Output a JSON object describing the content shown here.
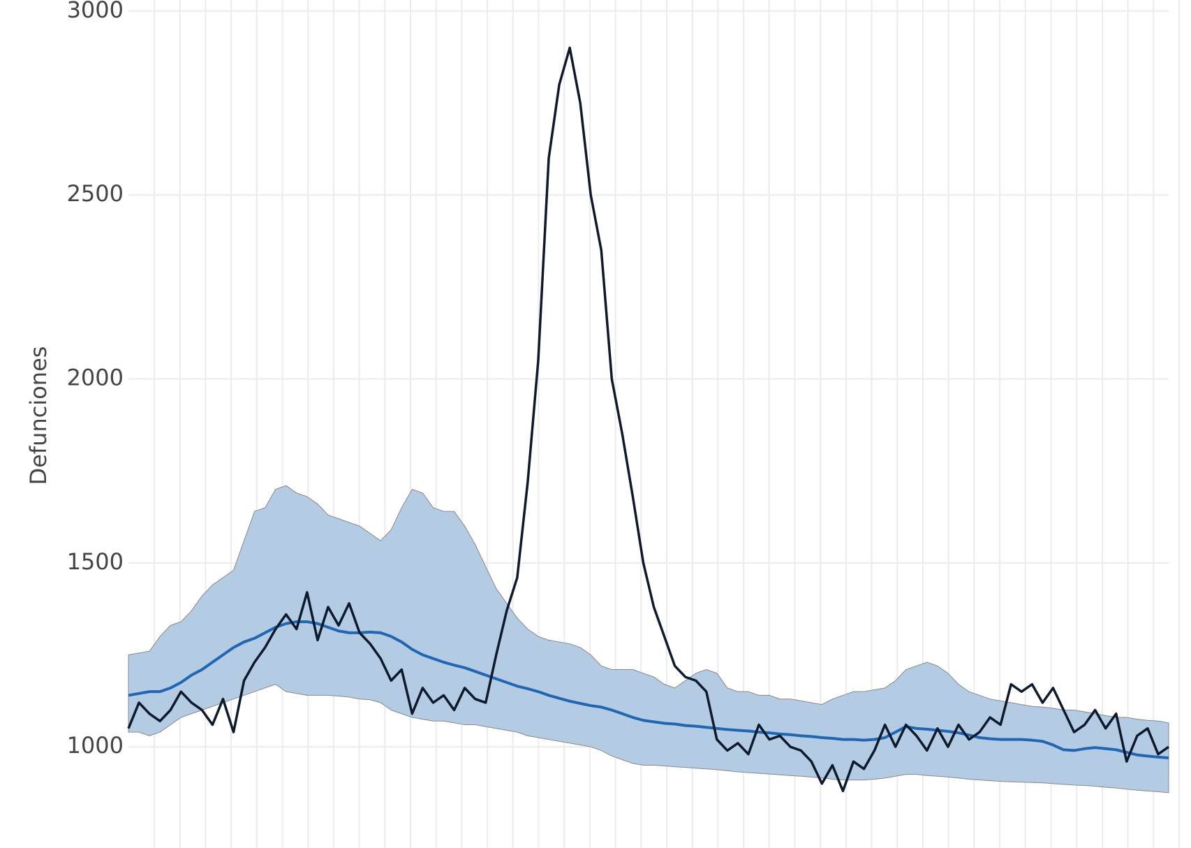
{
  "chart_data": {
    "type": "line",
    "y_label": "Defunciones",
    "ylim": [
      725,
      3030
    ],
    "yticks": [
      1000,
      1500,
      2000,
      2500,
      3000
    ],
    "grid": true,
    "categories": [
      null,
      null,
      null,
      null,
      null,
      null,
      null,
      null,
      null,
      null,
      null,
      null,
      null,
      null,
      null,
      null,
      null,
      null,
      null,
      null,
      null,
      null,
      null,
      null,
      null,
      null,
      null,
      null,
      null,
      null,
      null,
      null,
      null,
      null,
      null,
      null,
      null,
      null,
      null,
      null,
      null,
      null,
      null,
      null,
      null,
      null,
      null,
      null,
      null,
      null,
      null,
      null,
      null,
      null,
      null,
      null,
      null,
      null,
      null,
      null,
      null,
      null,
      null,
      null,
      null,
      null,
      null,
      null,
      null,
      null,
      null,
      null,
      null,
      null,
      null,
      null,
      null,
      null,
      null,
      null,
      null,
      null,
      null,
      null,
      null,
      null,
      null,
      null,
      null,
      null,
      null,
      null,
      null,
      null,
      null,
      null,
      null,
      null,
      null,
      null
    ],
    "series": [
      {
        "color": "#0c1a2c",
        "values": [
          1050,
          1120,
          1090,
          1070,
          1100,
          1150,
          1120,
          1100,
          1060,
          1130,
          1040,
          1180,
          1230,
          1270,
          1320,
          1360,
          1320,
          1420,
          1290,
          1380,
          1330,
          1390,
          1310,
          1280,
          1240,
          1180,
          1210,
          1090,
          1160,
          1120,
          1140,
          1100,
          1160,
          1130,
          1120,
          1250,
          1370,
          1460,
          1720,
          2050,
          2600,
          2800,
          2900,
          2750,
          2500,
          2350,
          2000,
          1850,
          1680,
          1500,
          1380,
          1300,
          1220,
          1190,
          1180,
          1150,
          1020,
          990,
          1010,
          980,
          1060,
          1020,
          1030,
          1000,
          990,
          960,
          900,
          950,
          880,
          960,
          940,
          990,
          1060,
          1000,
          1060,
          1030,
          990,
          1050,
          1000,
          1060,
          1020,
          1040,
          1080,
          1060,
          1170,
          1150,
          1170,
          1120,
          1160,
          1100,
          1040,
          1060,
          1100,
          1050,
          1090,
          960,
          1030,
          1050,
          980,
          1000
        ]
      },
      {
        "color": "#1f66b3",
        "band_color": "#b4cbe4",
        "values": [
          1140,
          1145,
          1150,
          1150,
          1160,
          1175,
          1195,
          1210,
          1230,
          1250,
          1270,
          1285,
          1295,
          1310,
          1325,
          1335,
          1340,
          1340,
          1335,
          1325,
          1315,
          1310,
          1310,
          1312,
          1310,
          1300,
          1285,
          1265,
          1250,
          1240,
          1230,
          1222,
          1215,
          1205,
          1195,
          1185,
          1175,
          1165,
          1158,
          1150,
          1140,
          1132,
          1124,
          1118,
          1112,
          1108,
          1100,
          1090,
          1080,
          1072,
          1068,
          1064,
          1062,
          1058,
          1056,
          1053,
          1050,
          1047,
          1045,
          1043,
          1040,
          1038,
          1035,
          1033,
          1030,
          1028,
          1025,
          1023,
          1020,
          1020,
          1018,
          1020,
          1025,
          1040,
          1055,
          1050,
          1048,
          1045,
          1042,
          1038,
          1032,
          1025,
          1022,
          1020,
          1020,
          1020,
          1018,
          1015,
          1005,
          992,
          990,
          995,
          998,
          995,
          992,
          985,
          978,
          975,
          972,
          970
        ],
        "upper": [
          1250,
          1255,
          1260,
          1300,
          1330,
          1340,
          1370,
          1410,
          1440,
          1460,
          1480,
          1560,
          1640,
          1650,
          1700,
          1710,
          1690,
          1680,
          1660,
          1630,
          1620,
          1610,
          1600,
          1580,
          1560,
          1590,
          1650,
          1700,
          1690,
          1650,
          1640,
          1640,
          1600,
          1550,
          1490,
          1430,
          1390,
          1350,
          1320,
          1300,
          1290,
          1285,
          1280,
          1270,
          1250,
          1220,
          1210,
          1210,
          1210,
          1200,
          1190,
          1170,
          1160,
          1180,
          1200,
          1210,
          1200,
          1160,
          1150,
          1150,
          1140,
          1140,
          1130,
          1130,
          1125,
          1120,
          1115,
          1130,
          1140,
          1150,
          1150,
          1155,
          1160,
          1180,
          1210,
          1220,
          1230,
          1220,
          1200,
          1170,
          1150,
          1140,
          1130,
          1125,
          1120,
          1115,
          1110,
          1108,
          1105,
          1100,
          1100,
          1095,
          1090,
          1085,
          1080,
          1080,
          1075,
          1072,
          1070,
          1065
        ],
        "lower": [
          1040,
          1040,
          1030,
          1040,
          1060,
          1080,
          1090,
          1100,
          1110,
          1120,
          1130,
          1140,
          1150,
          1160,
          1170,
          1150,
          1145,
          1140,
          1140,
          1140,
          1138,
          1135,
          1130,
          1128,
          1120,
          1100,
          1090,
          1080,
          1075,
          1070,
          1070,
          1065,
          1060,
          1060,
          1055,
          1050,
          1045,
          1040,
          1030,
          1025,
          1020,
          1015,
          1010,
          1005,
          1000,
          990,
          975,
          965,
          955,
          950,
          950,
          948,
          946,
          944,
          942,
          940,
          938,
          935,
          932,
          930,
          928,
          926,
          924,
          922,
          920,
          918,
          915,
          912,
          910,
          910,
          910,
          912,
          915,
          920,
          925,
          925,
          922,
          920,
          918,
          915,
          912,
          910,
          908,
          906,
          905,
          904,
          903,
          902,
          900,
          898,
          896,
          895,
          893,
          890,
          888,
          885,
          882,
          880,
          878,
          875
        ]
      }
    ]
  }
}
